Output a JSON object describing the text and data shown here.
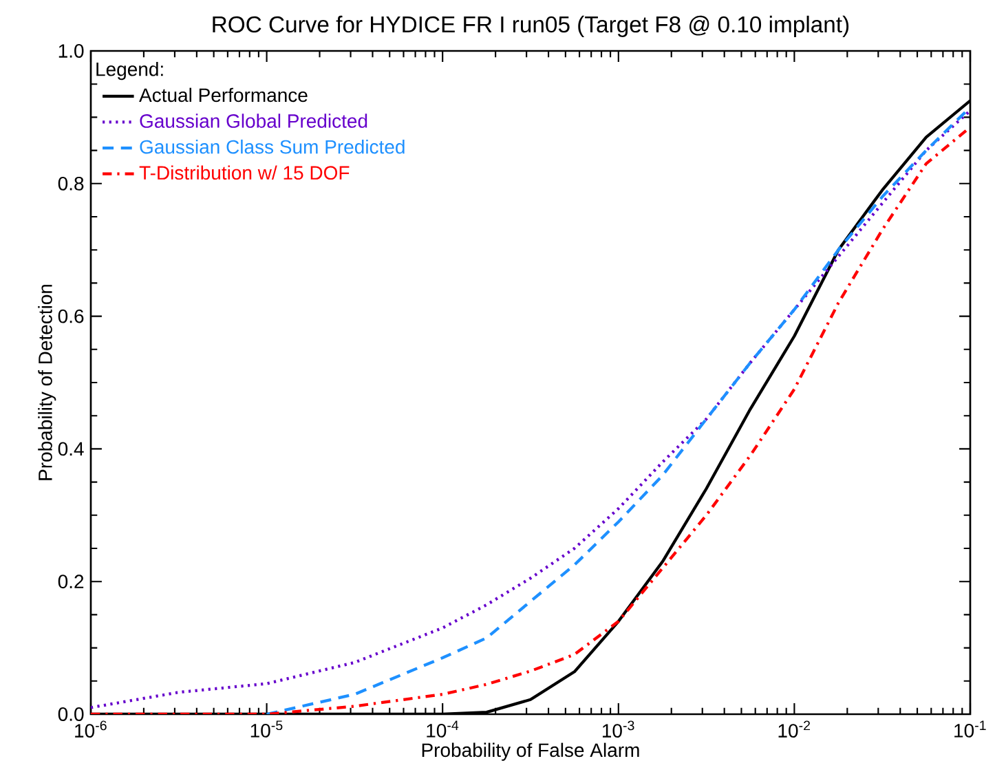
{
  "chart_data": {
    "type": "line",
    "title": "ROC Curve for HYDICE FR I run05 (Target F8 @ 0.10 implant)",
    "xlabel": "Probability of False Alarm",
    "ylabel": "Probability of Detection",
    "legend_title": "Legend:",
    "x": [
      1e-06,
      3.16e-06,
      1e-05,
      3.16e-05,
      0.0001,
      0.000178,
      0.000316,
      0.000562,
      0.001,
      0.00178,
      0.00316,
      0.00562,
      0.01,
      0.0178,
      0.0316,
      0.0562,
      0.1
    ],
    "series": [
      {
        "name": "Actual Performance",
        "color": "#000000",
        "line_style": "solid",
        "values": [
          0,
          0,
          0,
          0,
          0,
          0.003,
          0.022,
          0.064,
          0.14,
          0.23,
          0.34,
          0.46,
          0.57,
          0.7,
          0.79,
          0.87,
          0.925
        ]
      },
      {
        "name": "Gaussian Global Predicted",
        "color": "#6600cc",
        "line_style": "dotted",
        "values": [
          0.01,
          0.033,
          0.046,
          0.078,
          0.13,
          0.165,
          0.205,
          0.25,
          0.31,
          0.38,
          0.445,
          0.53,
          0.61,
          0.69,
          0.77,
          0.85,
          0.91
        ]
      },
      {
        "name": "Gaussian Class Sum Predicted",
        "color": "#1e90ff",
        "line_style": "dashed",
        "values": [
          null,
          null,
          0,
          0.03,
          0.085,
          0.115,
          0.17,
          0.225,
          0.29,
          0.36,
          0.445,
          0.53,
          0.61,
          0.7,
          0.78,
          0.85,
          0.915
        ]
      },
      {
        "name": "T-Distribution w/ 15 DOF",
        "color": "#ff0000",
        "line_style": "dashdot",
        "values": [
          0,
          0,
          0,
          0.012,
          0.03,
          0.045,
          0.065,
          0.09,
          0.14,
          0.22,
          0.3,
          0.39,
          0.49,
          0.62,
          0.73,
          0.83,
          0.885
        ]
      }
    ],
    "log": "x",
    "xlim": [
      1e-06,
      0.1
    ],
    "xticks": [
      {
        "value": 1e-06,
        "label": "10$^{-6}$"
      },
      {
        "value": 1e-05,
        "label": "10$^{-5}$"
      },
      {
        "value": 0.0001,
        "label": "10$^{-4}$"
      },
      {
        "value": 0.001,
        "label": "10$^{-3}$"
      },
      {
        "value": 0.01,
        "label": "10$^{-2}$"
      },
      {
        "value": 0.1,
        "label": "10$^{-1}$"
      }
    ],
    "ylim": [
      0,
      1
    ],
    "yticks": [
      {
        "value": 0,
        "label": "0.0"
      },
      {
        "value": 0.2,
        "label": "0.2"
      },
      {
        "value": 0.4,
        "label": "0.4"
      },
      {
        "value": 0.6,
        "label": "0.6"
      },
      {
        "value": 0.8,
        "label": "0.8"
      },
      {
        "value": 1,
        "label": "1.0"
      }
    ],
    "grid": false,
    "legend": "top left"
  }
}
